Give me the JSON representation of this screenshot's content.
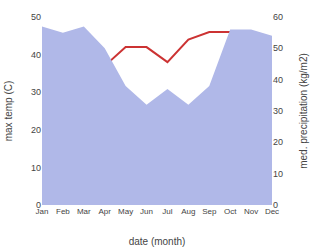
{
  "chart_data": {
    "type": "line",
    "categories": [
      "Jan",
      "Feb",
      "Mar",
      "Apr",
      "May",
      "Jun",
      "Jul",
      "Aug",
      "Sep",
      "Oct",
      "Nov",
      "Dec"
    ],
    "series": [
      {
        "type": "area",
        "axis": "y2",
        "color": "#b0b8e8",
        "values": [
          57,
          55,
          57,
          50,
          38,
          32,
          37,
          32,
          38,
          56,
          56,
          54
        ]
      },
      {
        "type": "line",
        "color": "#cc3333",
        "values": [
          36,
          36,
          36,
          37,
          42,
          42,
          38,
          44,
          46,
          46,
          42,
          42
        ]
      }
    ],
    "xlabel": "date (month)",
    "ylabel": "max temp (C)",
    "y2label": "med. precipitation (kg/m2)",
    "ylim": [
      0,
      50
    ],
    "yticks": [
      0,
      10,
      20,
      30,
      40,
      50
    ],
    "y2lim": [
      0,
      60
    ],
    "y2ticks": [
      0,
      10,
      20,
      30,
      40,
      50,
      60
    ],
    "grid": false
  }
}
